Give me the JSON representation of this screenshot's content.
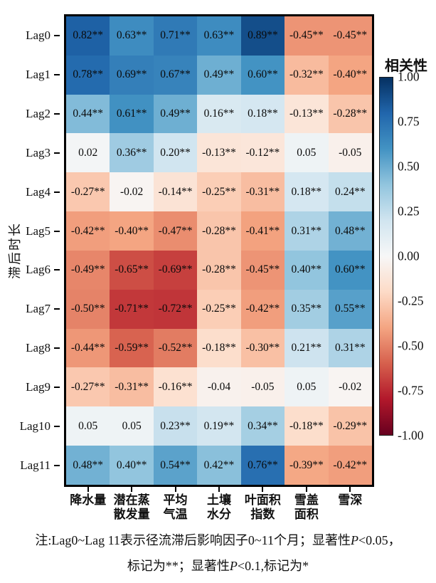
{
  "figure": {
    "background": "#ffffff",
    "text_color": "#111111",
    "border_color": "#000000"
  },
  "chart_data": {
    "type": "heatmap",
    "ylabel": "滞后时长",
    "rows": [
      "Lag0",
      "Lag1",
      "Lag2",
      "Lag3",
      "Lag4",
      "Lag5",
      "Lag6",
      "Lag7",
      "Lag8",
      "Lag9",
      "Lag10",
      "Lag11"
    ],
    "columns": [
      [
        "降水量"
      ],
      [
        "潜在蒸",
        "散发量"
      ],
      [
        "平均",
        "气温"
      ],
      [
        "土壤",
        "水分"
      ],
      [
        "叶面积",
        "指数"
      ],
      [
        "雪盖",
        "面积"
      ],
      [
        "雪深"
      ]
    ],
    "cell_labels": [
      [
        "0.82**",
        "0.63**",
        "0.71**",
        "0.63**",
        "0.89**",
        "-0.45**",
        "-0.45**"
      ],
      [
        "0.78**",
        "0.69**",
        "0.67**",
        "0.49**",
        "0.60**",
        "-0.32**",
        "-0.40**"
      ],
      [
        "0.44**",
        "0.61**",
        "0.49**",
        "0.16**",
        "0.18**",
        "-0.13**",
        "-0.28**"
      ],
      [
        "0.02",
        "0.36**",
        "0.20**",
        "-0.13**",
        "-0.12**",
        "0.05",
        "-0.05"
      ],
      [
        "-0.27**",
        "-0.02",
        "-0.14**",
        "-0.25**",
        "-0.31**",
        "0.18**",
        "0.24**"
      ],
      [
        "-0.42**",
        "-0.40**",
        "-0.47**",
        "-0.28**",
        "-0.41**",
        "0.31**",
        "0.48**"
      ],
      [
        "-0.49**",
        "-0.65**",
        "-0.69**",
        "-0.28**",
        "-0.45**",
        "0.40**",
        "0.60**"
      ],
      [
        "-0.50**",
        "-0.71**",
        "-0.72**",
        "-0.25**",
        "-0.42**",
        "0.35**",
        "0.55**"
      ],
      [
        "-0.44**",
        "-0.59**",
        "-0.52**",
        "-0.18**",
        "-0.30**",
        "0.21**",
        "0.31**"
      ],
      [
        "-0.27**",
        "-0.31**",
        "-0.16**",
        "-0.04",
        "-0.05",
        "0.05",
        "-0.02"
      ],
      [
        "0.05",
        "0.05",
        "0.23**",
        "0.19**",
        "0.34**",
        "-0.18**",
        "-0.29**"
      ],
      [
        "0.48**",
        "0.40**",
        "0.54**",
        "0.42**",
        "0.76**",
        "-0.39**",
        "-0.42**"
      ]
    ],
    "values": [
      [
        0.82,
        0.63,
        0.71,
        0.63,
        0.89,
        -0.45,
        -0.45
      ],
      [
        0.78,
        0.69,
        0.67,
        0.49,
        0.6,
        -0.32,
        -0.4
      ],
      [
        0.44,
        0.61,
        0.49,
        0.16,
        0.18,
        -0.13,
        -0.28
      ],
      [
        0.02,
        0.36,
        0.2,
        -0.13,
        -0.12,
        0.05,
        -0.05
      ],
      [
        -0.27,
        -0.02,
        -0.14,
        -0.25,
        -0.31,
        0.18,
        0.24
      ],
      [
        -0.42,
        -0.4,
        -0.47,
        -0.28,
        -0.41,
        0.31,
        0.48
      ],
      [
        -0.49,
        -0.65,
        -0.69,
        -0.28,
        -0.45,
        0.4,
        0.6
      ],
      [
        -0.5,
        -0.71,
        -0.72,
        -0.25,
        -0.42,
        0.35,
        0.55
      ],
      [
        -0.44,
        -0.59,
        -0.52,
        -0.18,
        -0.3,
        0.21,
        0.31
      ],
      [
        -0.27,
        -0.31,
        -0.16,
        -0.04,
        -0.05,
        0.05,
        -0.02
      ],
      [
        0.05,
        0.05,
        0.23,
        0.19,
        0.34,
        -0.18,
        -0.29
      ],
      [
        0.48,
        0.4,
        0.54,
        0.42,
        0.76,
        -0.39,
        -0.42
      ]
    ],
    "colorbar": {
      "title": "相关性",
      "ticks": [
        "1.00",
        "0.75",
        "0.50",
        "0.25",
        "0.00",
        "-0.25",
        "-0.50",
        "-0.75",
        "-1.00"
      ],
      "vmin": -1.0,
      "vmax": 1.0
    },
    "colormap_stops": [
      {
        "pos": 0.0,
        "color": "#67001f"
      },
      {
        "pos": 0.1,
        "color": "#b2182b"
      },
      {
        "pos": 0.2,
        "color": "#d6604d"
      },
      {
        "pos": 0.3,
        "color": "#f4a582"
      },
      {
        "pos": 0.4,
        "color": "#fddbc7"
      },
      {
        "pos": 0.5,
        "color": "#f7f7f7"
      },
      {
        "pos": 0.6,
        "color": "#d1e5f0"
      },
      {
        "pos": 0.7,
        "color": "#92c5de"
      },
      {
        "pos": 0.8,
        "color": "#4393c3"
      },
      {
        "pos": 0.9,
        "color": "#2166ac"
      },
      {
        "pos": 1.0,
        "color": "#053061"
      }
    ]
  },
  "footer": {
    "line1_pre": "注:Lag0~Lag 11表示径流滞后影响因子0~11个月；显著性",
    "line1_italic": "P",
    "line1_post": "<0.05，",
    "line2_pre": "标记为**；显著性",
    "line2_italic": "P",
    "line2_post": "<0.1,标记为*"
  }
}
